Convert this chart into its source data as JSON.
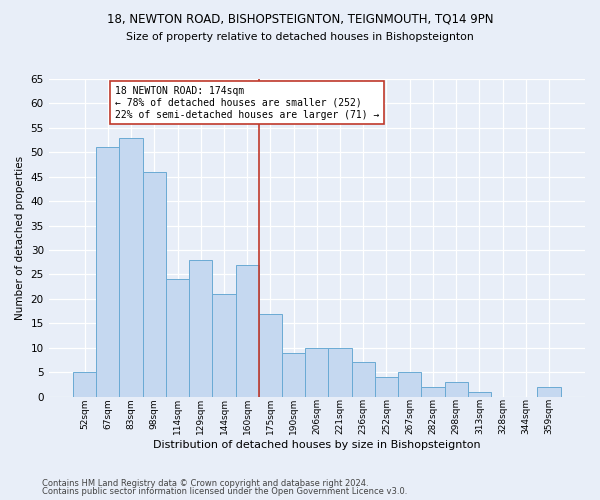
{
  "title1": "18, NEWTON ROAD, BISHOPSTEIGNTON, TEIGNMOUTH, TQ14 9PN",
  "title2": "Size of property relative to detached houses in Bishopsteignton",
  "xlabel": "Distribution of detached houses by size in Bishopsteignton",
  "ylabel": "Number of detached properties",
  "categories": [
    "52sqm",
    "67sqm",
    "83sqm",
    "98sqm",
    "114sqm",
    "129sqm",
    "144sqm",
    "160sqm",
    "175sqm",
    "190sqm",
    "206sqm",
    "221sqm",
    "236sqm",
    "252sqm",
    "267sqm",
    "282sqm",
    "298sqm",
    "313sqm",
    "328sqm",
    "344sqm",
    "359sqm"
  ],
  "values": [
    5,
    51,
    53,
    46,
    24,
    28,
    21,
    27,
    17,
    9,
    10,
    10,
    7,
    4,
    5,
    2,
    3,
    1,
    0,
    0,
    2
  ],
  "bar_color": "#c5d8f0",
  "bar_edge_color": "#6aaad4",
  "vline_x": 7.5,
  "vline_color": "#c0392b",
  "annotation_text": "18 NEWTON ROAD: 174sqm\n← 78% of detached houses are smaller (252)\n22% of semi-detached houses are larger (71) →",
  "annotation_box_color": "white",
  "annotation_box_edge": "#c0392b",
  "ylim": [
    0,
    65
  ],
  "yticks": [
    0,
    5,
    10,
    15,
    20,
    25,
    30,
    35,
    40,
    45,
    50,
    55,
    60,
    65
  ],
  "footer1": "Contains HM Land Registry data © Crown copyright and database right 2024.",
  "footer2": "Contains public sector information licensed under the Open Government Licence v3.0.",
  "bg_color": "#e8eef8",
  "plot_bg_color": "#e8eef8"
}
